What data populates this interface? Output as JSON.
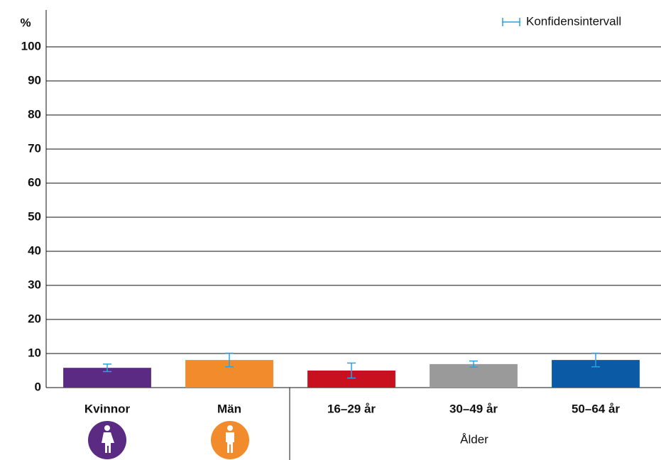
{
  "chart_data": {
    "type": "bar",
    "ylabel": "%",
    "legend": "Konfidensintervall",
    "group_label": "Ålder",
    "categories": [
      "Kvinnor",
      "Män",
      "16–29 år",
      "30–49 år",
      "50–64 år"
    ],
    "values": [
      5.8,
      8.1,
      5.0,
      6.9,
      8.1
    ],
    "errors": [
      1.1,
      2.0,
      2.2,
      0.9,
      2.0
    ],
    "colors": [
      "#5b2a83",
      "#f18b2c",
      "#c8101e",
      "#9a9a9a",
      "#0b5aa6"
    ],
    "error_color": "#29a3e0",
    "ylim": [
      0,
      100
    ],
    "yticks": [
      0,
      10,
      20,
      30,
      40,
      50,
      60,
      70,
      80,
      90,
      100
    ],
    "grid": true
  }
}
